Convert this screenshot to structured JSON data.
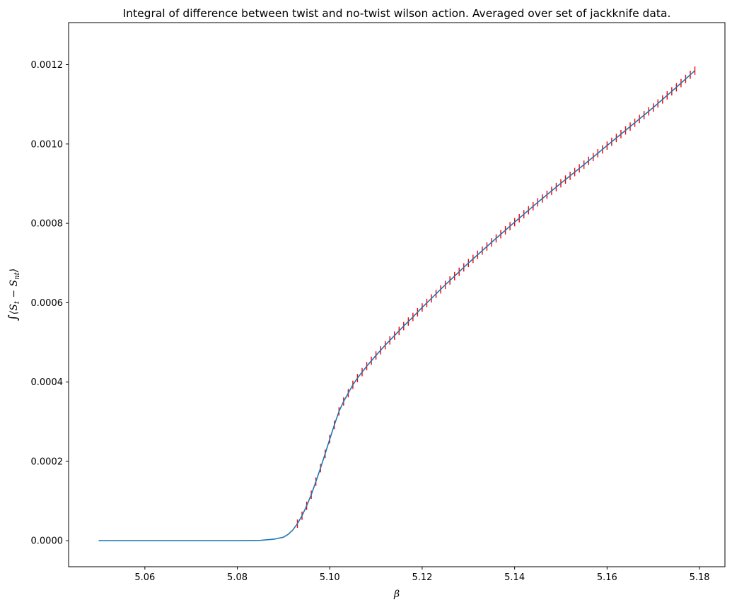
{
  "chart_data": {
    "type": "line",
    "title": "Integral of difference between twist and no-twist wilson action. Averaged over set of jackknife data.",
    "xlabel": "β",
    "ylabel": "∫⟨S_t − S_nt⟩",
    "ylabel_parts": {
      "integral": "∫",
      "open": "⟨S",
      "sub1": "t",
      "mid": " − S",
      "sub2": "nt",
      "close": "⟩"
    },
    "xlim": [
      5.0435,
      5.1855
    ],
    "ylim": [
      -6.55e-05,
      0.001306
    ],
    "xticks": [
      5.06,
      5.08,
      5.1,
      5.12,
      5.14,
      5.16,
      5.18
    ],
    "xtick_labels": [
      "5.06",
      "5.08",
      "5.10",
      "5.12",
      "5.14",
      "5.16",
      "5.18"
    ],
    "yticks": [
      0.0,
      0.0002,
      0.0004,
      0.0006,
      0.0008,
      0.001,
      0.0012
    ],
    "ytick_labels": [
      "0.0000",
      "0.0002",
      "0.0004",
      "0.0006",
      "0.0008",
      "0.0010",
      "0.0012"
    ],
    "grid": false,
    "series": [
      {
        "color": "#1f77b4",
        "x": [
          5.05,
          5.06,
          5.07,
          5.08,
          5.085,
          5.088,
          5.09,
          5.091,
          5.092,
          5.093,
          5.094,
          5.095,
          5.096,
          5.097,
          5.098,
          5.099,
          5.1,
          5.101,
          5.102,
          5.103,
          5.104,
          5.105,
          5.106,
          5.107,
          5.108,
          5.11,
          5.112,
          5.114,
          5.116,
          5.118,
          5.12,
          5.125,
          5.13,
          5.135,
          5.14,
          5.145,
          5.15,
          5.155,
          5.16,
          5.165,
          5.17,
          5.175,
          5.179
        ],
        "y": [
          0.0,
          0.0,
          0.0,
          0.0,
          1e-06,
          4e-06,
          9e-06,
          1.6e-05,
          2.7e-05,
          4.3e-05,
          6.3e-05,
          8.8e-05,
          0.000116,
          0.000149,
          0.000183,
          0.000219,
          0.000256,
          0.000292,
          0.000326,
          0.000351,
          0.000372,
          0.000393,
          0.00041,
          0.000425,
          0.00044,
          0.000467,
          0.000493,
          0.000517,
          0.000541,
          0.000564,
          0.000588,
          0.000645,
          0.0007,
          0.000752,
          0.000803,
          0.000853,
          0.000901,
          0.000948,
          0.000996,
          0.001044,
          0.001092,
          0.001143,
          0.001185
        ]
      }
    ],
    "errorbars": {
      "color": "#ff0000",
      "x_start": 5.093,
      "x_end": 5.179,
      "x_step": 0.001,
      "yerr": 1.05e-05
    }
  }
}
